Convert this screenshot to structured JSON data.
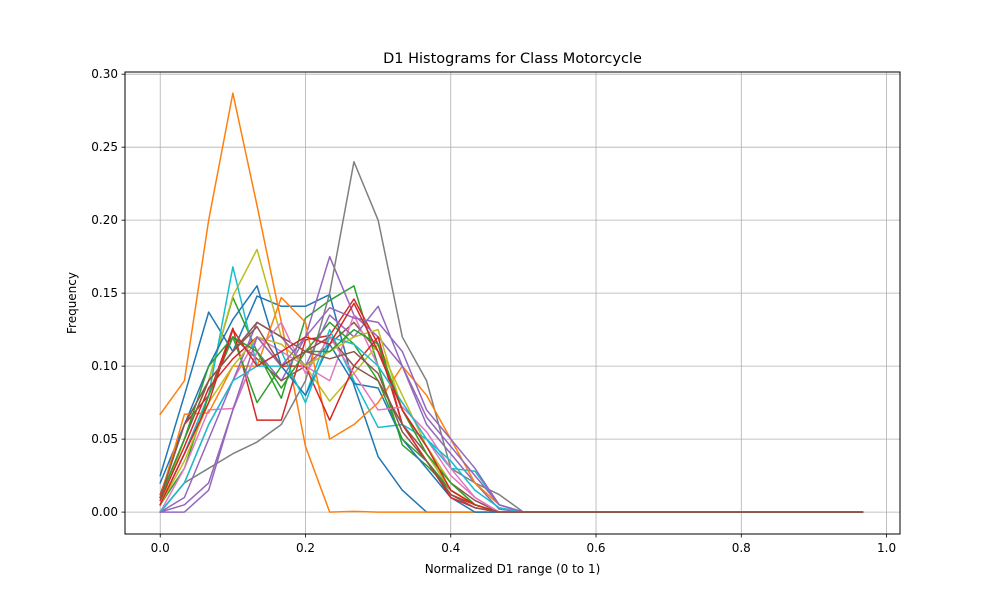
{
  "chart_data": {
    "type": "line",
    "title": "D1 Histograms for Class Motorcycle",
    "xlabel": "Normalized D1 range (0 to 1)",
    "ylabel": "Frequency",
    "xlim": [
      -0.0485,
      1.0185
    ],
    "ylim": [
      -0.015,
      0.3015
    ],
    "xticks": [
      0.0,
      0.2,
      0.4,
      0.6,
      0.8,
      1.0
    ],
    "xtick_labels": [
      "0.0",
      "0.2",
      "0.4",
      "0.6",
      "0.8",
      "1.0"
    ],
    "yticks": [
      0.0,
      0.05,
      0.1,
      0.15,
      0.2,
      0.25,
      0.3
    ],
    "ytick_labels": [
      "0.00",
      "0.05",
      "0.10",
      "0.15",
      "0.20",
      "0.25",
      "0.30"
    ],
    "grid": true,
    "x": [
      0.0,
      0.0333,
      0.0667,
      0.1,
      0.1333,
      0.1667,
      0.2,
      0.2333,
      0.2667,
      0.3,
      0.3333,
      0.3667,
      0.4,
      0.4333,
      0.4667,
      0.5,
      0.5333,
      0.5667,
      0.6,
      0.6333,
      0.6667,
      0.7,
      0.7333,
      0.7667,
      0.8,
      0.8333,
      0.8667,
      0.9,
      0.9333,
      0.9667
    ],
    "series": [
      {
        "color": "#1f77b4",
        "values": [
          0.025,
          0.08,
          0.137,
          0.11,
          0.148,
          0.141,
          0.141,
          0.149,
          0.087,
          0.038,
          0.015,
          0.0,
          0,
          0,
          0,
          0,
          0,
          0,
          0,
          0,
          0,
          0,
          0,
          0,
          0,
          0,
          0,
          0,
          0,
          0
        ]
      },
      {
        "color": "#ff7f0e",
        "values": [
          0.067,
          0.09,
          0.2,
          0.287,
          0.21,
          0.13,
          0.045,
          0.0,
          0.0005,
          0.0,
          0.0,
          0.0,
          0,
          0,
          0,
          0,
          0,
          0,
          0,
          0,
          0,
          0,
          0,
          0,
          0,
          0,
          0,
          0,
          0,
          0
        ]
      },
      {
        "color": "#2ca02c",
        "values": [
          0.01,
          0.05,
          0.09,
          0.147,
          0.11,
          0.078,
          0.133,
          0.145,
          0.155,
          0.1,
          0.046,
          0.032,
          0.015,
          0.005,
          0.0,
          0.0,
          0,
          0,
          0,
          0,
          0,
          0,
          0,
          0,
          0,
          0,
          0,
          0,
          0,
          0
        ]
      },
      {
        "color": "#d62728",
        "values": [
          0.012,
          0.06,
          0.08,
          0.126,
          0.063,
          0.063,
          0.118,
          0.121,
          0.146,
          0.115,
          0.06,
          0.035,
          0.012,
          0.005,
          0.0,
          0.0,
          0,
          0,
          0,
          0,
          0,
          0,
          0,
          0,
          0,
          0,
          0,
          0,
          0,
          0
        ]
      },
      {
        "color": "#9467bd",
        "values": [
          0.0,
          0.005,
          0.02,
          0.07,
          0.11,
          0.09,
          0.12,
          0.175,
          0.135,
          0.12,
          0.1,
          0.06,
          0.04,
          0.02,
          0.002,
          0.0,
          0,
          0,
          0,
          0,
          0,
          0,
          0,
          0,
          0,
          0,
          0,
          0,
          0,
          0
        ]
      },
      {
        "color": "#8c564b",
        "values": [
          0.005,
          0.04,
          0.08,
          0.12,
          0.105,
          0.09,
          0.1,
          0.115,
          0.13,
          0.11,
          0.07,
          0.045,
          0.02,
          0.008,
          0.0,
          0.0,
          0,
          0,
          0,
          0,
          0,
          0,
          0,
          0,
          0,
          0,
          0,
          0,
          0,
          0
        ]
      },
      {
        "color": "#e377c2",
        "values": [
          0.0,
          0.02,
          0.06,
          0.09,
          0.12,
          0.11,
          0.1,
          0.09,
          0.135,
          0.1,
          0.075,
          0.05,
          0.025,
          0.01,
          0.0,
          0.0,
          0,
          0,
          0,
          0,
          0,
          0,
          0,
          0,
          0,
          0,
          0,
          0,
          0,
          0
        ]
      },
      {
        "color": "#7f7f7f",
        "values": [
          0.0,
          0.02,
          0.03,
          0.04,
          0.048,
          0.06,
          0.09,
          0.15,
          0.24,
          0.2,
          0.12,
          0.09,
          0.03,
          0.02,
          0.012,
          0.0,
          0,
          0,
          0,
          0,
          0,
          0,
          0,
          0,
          0,
          0,
          0,
          0,
          0,
          0
        ]
      },
      {
        "color": "#bcbd22",
        "values": [
          0.005,
          0.05,
          0.09,
          0.148,
          0.18,
          0.12,
          0.1,
          0.076,
          0.095,
          0.115,
          0.08,
          0.045,
          0.02,
          0.005,
          0.0,
          0.0,
          0,
          0,
          0,
          0,
          0,
          0,
          0,
          0,
          0,
          0,
          0,
          0,
          0,
          0
        ]
      },
      {
        "color": "#17becf",
        "values": [
          0.005,
          0.04,
          0.08,
          0.168,
          0.1,
          0.1,
          0.08,
          0.125,
          0.09,
          0.058,
          0.06,
          0.05,
          0.03,
          0.028,
          0.005,
          0.0,
          0,
          0,
          0,
          0,
          0,
          0,
          0,
          0,
          0,
          0,
          0,
          0,
          0,
          0
        ]
      },
      {
        "color": "#1f77b4",
        "values": [
          0.02,
          0.06,
          0.1,
          0.132,
          0.155,
          0.1,
          0.08,
          0.115,
          0.088,
          0.085,
          0.05,
          0.03,
          0.01,
          0.0,
          0.0,
          0.0,
          0,
          0,
          0,
          0,
          0,
          0,
          0,
          0,
          0,
          0,
          0,
          0,
          0,
          0
        ]
      },
      {
        "color": "#ff7f0e",
        "values": [
          0.01,
          0.067,
          0.068,
          0.1,
          0.1,
          0.147,
          0.13,
          0.05,
          0.06,
          0.075,
          0.1,
          0.08,
          0.05,
          0.02,
          0.005,
          0.0,
          0,
          0,
          0,
          0,
          0,
          0,
          0,
          0,
          0,
          0,
          0,
          0,
          0,
          0
        ]
      },
      {
        "color": "#2ca02c",
        "values": [
          0.005,
          0.03,
          0.08,
          0.12,
          0.075,
          0.1,
          0.11,
          0.13,
          0.115,
          0.09,
          0.05,
          0.035,
          0.015,
          0.005,
          0.0,
          0.0,
          0,
          0,
          0,
          0,
          0,
          0,
          0,
          0,
          0,
          0,
          0,
          0,
          0,
          0
        ]
      },
      {
        "color": "#d62728",
        "values": [
          0.008,
          0.045,
          0.085,
          0.105,
          0.12,
          0.1,
          0.1,
          0.063,
          0.1,
          0.12,
          0.06,
          0.035,
          0.01,
          0.003,
          0.0,
          0.0,
          0,
          0,
          0,
          0,
          0,
          0,
          0,
          0,
          0,
          0,
          0,
          0,
          0,
          0
        ]
      },
      {
        "color": "#9467bd",
        "values": [
          0.0,
          0.01,
          0.05,
          0.09,
          0.13,
          0.12,
          0.1,
          0.135,
          0.12,
          0.141,
          0.1,
          0.065,
          0.045,
          0.025,
          0.005,
          0.0,
          0,
          0,
          0,
          0,
          0,
          0,
          0,
          0,
          0,
          0,
          0,
          0,
          0,
          0
        ]
      },
      {
        "color": "#8c564b",
        "values": [
          0.01,
          0.05,
          0.09,
          0.11,
          0.13,
          0.12,
          0.11,
          0.12,
          0.1,
          0.09,
          0.06,
          0.04,
          0.015,
          0.005,
          0.0,
          0.0,
          0,
          0,
          0,
          0,
          0,
          0,
          0,
          0,
          0,
          0,
          0,
          0,
          0,
          0
        ]
      },
      {
        "color": "#e377c2",
        "values": [
          0.0,
          0.03,
          0.07,
          0.071,
          0.11,
          0.13,
          0.095,
          0.12,
          0.095,
          0.07,
          0.072,
          0.055,
          0.03,
          0.01,
          0.0,
          0.0,
          0,
          0,
          0,
          0,
          0,
          0,
          0,
          0,
          0,
          0,
          0,
          0,
          0,
          0
        ]
      },
      {
        "color": "#bcbd22",
        "values": [
          0.005,
          0.035,
          0.075,
          0.1,
          0.12,
          0.115,
          0.1,
          0.11,
          0.12,
          0.125,
          0.07,
          0.04,
          0.015,
          0.005,
          0.0,
          0.0,
          0,
          0,
          0,
          0,
          0,
          0,
          0,
          0,
          0,
          0,
          0,
          0,
          0,
          0
        ]
      },
      {
        "color": "#17becf",
        "values": [
          0.0,
          0.02,
          0.06,
          0.09,
          0.1,
          0.11,
          0.075,
          0.12,
          0.115,
          0.1,
          0.075,
          0.05,
          0.035,
          0.015,
          0.003,
          0.0,
          0,
          0,
          0,
          0,
          0,
          0,
          0,
          0,
          0,
          0,
          0,
          0,
          0,
          0
        ]
      },
      {
        "color": "#9467bd",
        "values": [
          0.0,
          0.0,
          0.015,
          0.07,
          0.12,
          0.1,
          0.12,
          0.14,
          0.133,
          0.13,
          0.11,
          0.07,
          0.05,
          0.03,
          0.005,
          0.0,
          0,
          0,
          0,
          0,
          0,
          0,
          0,
          0,
          0,
          0,
          0,
          0,
          0,
          0
        ]
      },
      {
        "color": "#2ca02c",
        "values": [
          0.01,
          0.05,
          0.1,
          0.12,
          0.11,
          0.085,
          0.11,
          0.11,
          0.125,
          0.115,
          0.07,
          0.04,
          0.02,
          0.005,
          0.0,
          0.0,
          0,
          0,
          0,
          0,
          0,
          0,
          0,
          0,
          0,
          0,
          0,
          0,
          0,
          0
        ]
      },
      {
        "color": "#d62728",
        "values": [
          0.005,
          0.04,
          0.075,
          0.125,
          0.1,
          0.11,
          0.12,
          0.115,
          0.143,
          0.11,
          0.07,
          0.045,
          0.015,
          0.005,
          0.0,
          0.0,
          0,
          0,
          0,
          0,
          0,
          0,
          0,
          0,
          0,
          0,
          0,
          0,
          0,
          0
        ]
      },
      {
        "color": "#8c564b",
        "values": [
          0.01,
          0.06,
          0.09,
          0.11,
          0.127,
          0.1,
          0.11,
          0.105,
          0.11,
          0.095,
          0.055,
          0.035,
          0.012,
          0.003,
          0.0,
          0.0,
          0,
          0,
          0,
          0,
          0,
          0,
          0,
          0,
          0,
          0,
          0,
          0,
          0,
          0
        ]
      }
    ]
  }
}
